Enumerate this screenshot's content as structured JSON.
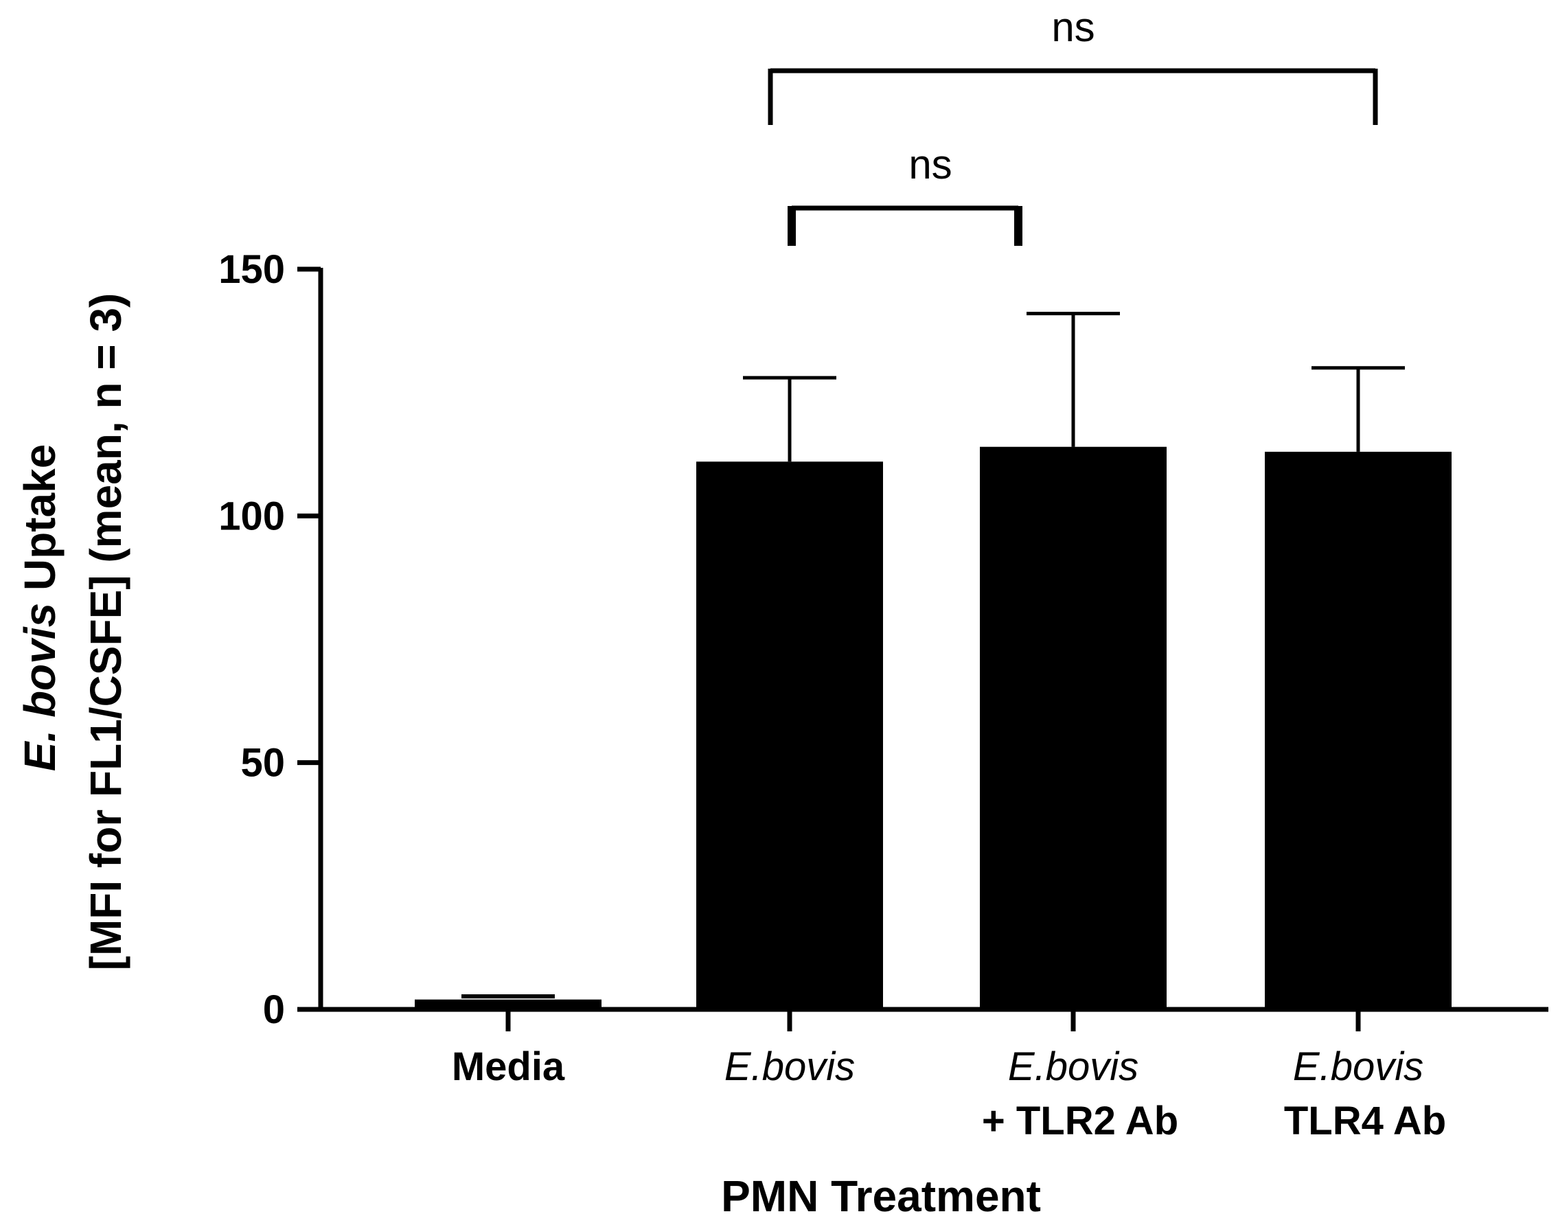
{
  "chart_data": {
    "type": "bar",
    "categories": [
      {
        "line1": "Media",
        "line2": "",
        "style": "bold"
      },
      {
        "line1": "E.bovis",
        "line2": "",
        "style": "italic"
      },
      {
        "line1": "E.bovis",
        "line2": "+ TLR2 Ab",
        "style": "italic"
      },
      {
        "line1": "E.bovis",
        "line2": "TLR4 Ab",
        "style": "italic"
      }
    ],
    "values": [
      2,
      111,
      114,
      113
    ],
    "errors": [
      0.5,
      17,
      27,
      17
    ],
    "ylim": [
      0,
      150
    ],
    "yticks": [
      "0",
      "50",
      "100",
      "150"
    ],
    "ytick_values": [
      0,
      50,
      100,
      150
    ],
    "xlabel": "PMN Treatment",
    "ylabel_line1_italic": "E. bovis",
    "ylabel_line1_rest": " Uptake",
    "ylabel_line2": "[MFI for FL1/CSFE] (mean, n = 3)",
    "significance": [
      {
        "from": 1,
        "to": 2,
        "label": "ns"
      },
      {
        "from": 1,
        "to": 3,
        "label": "ns"
      }
    ],
    "bar_color": "#000000",
    "grid": false
  }
}
